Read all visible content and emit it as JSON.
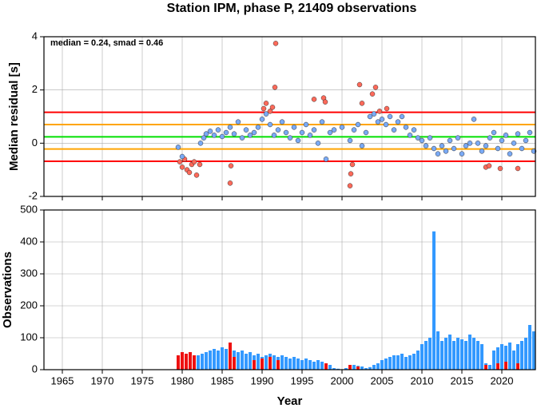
{
  "title": "Station IPM, phase P, 21409 observations",
  "chart_data": [
    {
      "type": "scatter",
      "y_label": "Median residual [s]",
      "annotation": "median = 0.24, smad = 0.46",
      "xlim": [
        1962.7,
        2024.2
      ],
      "ylim": [
        -2,
        4
      ],
      "yticks": [
        -2,
        0,
        2,
        4
      ],
      "grid": true,
      "reference_lines": [
        {
          "value": 1.16,
          "color": "#ff0000"
        },
        {
          "value": 0.7,
          "color": "#ffa500"
        },
        {
          "value": 0.24,
          "color": "#00e000"
        },
        {
          "value": -0.22,
          "color": "#ffa500"
        },
        {
          "value": -0.68,
          "color": "#ff0000"
        }
      ],
      "series": [
        {
          "color": "#ff6a5a",
          "x": [
            1979.7,
            1980,
            1980.3,
            1980.6,
            1980.9,
            1981.2,
            1981.5,
            1981.8,
            1982.2,
            1986,
            1986.1,
            1990.2,
            1990.5,
            1991,
            1991.3,
            1991.6,
            1991.7,
            1996.5,
            1997.7,
            1997.9,
            2001,
            2001.1,
            2001.3,
            2002.2,
            2002.5,
            2003.8,
            2004.2,
            2004.7,
            2005.6,
            2018,
            2018.4,
            2019.8,
            2022
          ],
          "values": [
            -0.7,
            -0.9,
            -0.6,
            -1.0,
            -1.1,
            -0.8,
            -0.7,
            -1.2,
            -0.8,
            -1.5,
            -0.85,
            1.3,
            1.5,
            1.2,
            1.35,
            2.1,
            3.75,
            1.65,
            1.7,
            1.55,
            -1.6,
            -1.15,
            -0.8,
            2.2,
            1.5,
            1.85,
            2.1,
            1.2,
            1.3,
            -0.9,
            -0.85,
            -0.95,
            -0.95
          ]
        },
        {
          "color": "#7aaaf5",
          "x": [
            1979.5,
            1980,
            1982.3,
            1982.7,
            1983,
            1983.5,
            1984,
            1984.5,
            1985,
            1985.5,
            1986,
            1986.5,
            1987,
            1987.5,
            1988,
            1988.5,
            1989,
            1989.5,
            1990,
            1990.5,
            1991,
            1991.5,
            1992,
            1992.5,
            1993,
            1993.5,
            1994,
            1994.5,
            1995,
            1995.5,
            1996,
            1996.5,
            1997,
            1997.5,
            1998,
            1998.5,
            1999,
            2000,
            2001,
            2001.5,
            2002,
            2002.5,
            2003,
            2003.5,
            2004,
            2004.5,
            2005,
            2005.5,
            2006,
            2006.5,
            2007,
            2007.5,
            2008,
            2008.5,
            2009,
            2009.5,
            2010,
            2010.5,
            2011,
            2011.5,
            2012,
            2012.5,
            2013,
            2013.5,
            2014,
            2014.5,
            2015,
            2015.5,
            2016,
            2016.5,
            2017,
            2017.5,
            2018,
            2018.5,
            2019,
            2019.5,
            2020,
            2020.5,
            2021,
            2021.5,
            2022,
            2022.5,
            2023,
            2023.5,
            2024
          ],
          "values": [
            -0.15,
            -0.5,
            0.0,
            0.2,
            0.35,
            0.45,
            0.3,
            0.5,
            0.25,
            0.4,
            0.6,
            0.35,
            0.8,
            0.2,
            0.5,
            0.3,
            0.4,
            0.6,
            0.9,
            1.1,
            0.7,
            0.3,
            0.5,
            0.8,
            0.4,
            0.2,
            0.6,
            0.1,
            0.4,
            0.7,
            0.3,
            0.5,
            0.0,
            0.8,
            -0.6,
            0.4,
            0.5,
            0.6,
            0.1,
            0.5,
            0.7,
            -0.1,
            0.4,
            1.0,
            1.1,
            0.8,
            0.9,
            0.7,
            1.0,
            0.5,
            0.8,
            1.0,
            0.6,
            0.3,
            0.5,
            0.2,
            0.1,
            -0.1,
            0.2,
            -0.2,
            -0.4,
            -0.1,
            -0.3,
            0.1,
            -0.2,
            0.2,
            -0.4,
            -0.1,
            0.0,
            0.9,
            0.0,
            -0.3,
            -0.1,
            0.2,
            0.4,
            -0.2,
            0.1,
            0.3,
            -0.4,
            0.0,
            0.35,
            -0.2,
            0.1,
            0.4,
            -0.3
          ]
        }
      ]
    },
    {
      "type": "bar",
      "y_label": "Observations",
      "x_label": "Year",
      "xlim": [
        1962.7,
        2024.2
      ],
      "ylim": [
        0,
        500
      ],
      "yticks": [
        0,
        100,
        200,
        300,
        400,
        500
      ],
      "xticks": [
        1965,
        1970,
        1975,
        1980,
        1985,
        1990,
        1995,
        2000,
        2005,
        2010,
        2015,
        2020
      ],
      "grid": true,
      "series": [
        {
          "color": "#3399ff",
          "x": [
            1980,
            1980.5,
            1981,
            1981.5,
            1982,
            1982.5,
            1983,
            1983.5,
            1984,
            1984.5,
            1985,
            1985.5,
            1986,
            1986.5,
            1987,
            1987.5,
            1988,
            1988.5,
            1989,
            1989.5,
            1990,
            1990.5,
            1991,
            1991.5,
            1992,
            1992.5,
            1993,
            1993.5,
            1994,
            1994.5,
            1995,
            1995.5,
            1996,
            1996.5,
            1997,
            1997.5,
            1998,
            1998.5,
            1999,
            1999.5,
            2000.5,
            2001,
            2001.5,
            2002,
            2002.5,
            2003,
            2003.5,
            2004,
            2004.5,
            2005,
            2005.5,
            2006,
            2006.5,
            2007,
            2007.5,
            2008,
            2008.5,
            2009,
            2009.5,
            2010,
            2010.5,
            2011,
            2011.5,
            2012,
            2012.5,
            2013,
            2013.5,
            2014,
            2014.5,
            2015,
            2015.5,
            2016,
            2016.5,
            2017,
            2017.5,
            2018,
            2018.5,
            2019,
            2019.5,
            2020,
            2020.5,
            2021,
            2021.5,
            2022,
            2022.5,
            2023,
            2023.5,
            2024
          ],
          "values": [
            20,
            30,
            35,
            40,
            45,
            50,
            55,
            60,
            65,
            60,
            70,
            65,
            75,
            60,
            55,
            60,
            50,
            55,
            45,
            50,
            40,
            45,
            50,
            45,
            40,
            45,
            40,
            35,
            40,
            35,
            30,
            35,
            30,
            25,
            30,
            25,
            20,
            15,
            5,
            3,
            5,
            10,
            15,
            12,
            10,
            5,
            8,
            15,
            20,
            30,
            35,
            40,
            45,
            45,
            50,
            40,
            45,
            50,
            60,
            80,
            90,
            100,
            433,
            120,
            90,
            100,
            110,
            90,
            100,
            95,
            90,
            110,
            100,
            90,
            80,
            20,
            15,
            60,
            70,
            80,
            75,
            85,
            60,
            80,
            90,
            100,
            140,
            120
          ]
        },
        {
          "color": "#ee1111",
          "x": [
            1979.5,
            1980,
            1980.5,
            1981,
            1981.5,
            1986,
            1986.5,
            1989,
            1990,
            1991,
            1992,
            1998,
            2001,
            2002,
            2018,
            2019.5,
            2020.5,
            2022
          ],
          "values": [
            45,
            55,
            50,
            55,
            45,
            85,
            40,
            30,
            35,
            40,
            30,
            20,
            15,
            10,
            15,
            20,
            25,
            20
          ]
        }
      ]
    }
  ]
}
